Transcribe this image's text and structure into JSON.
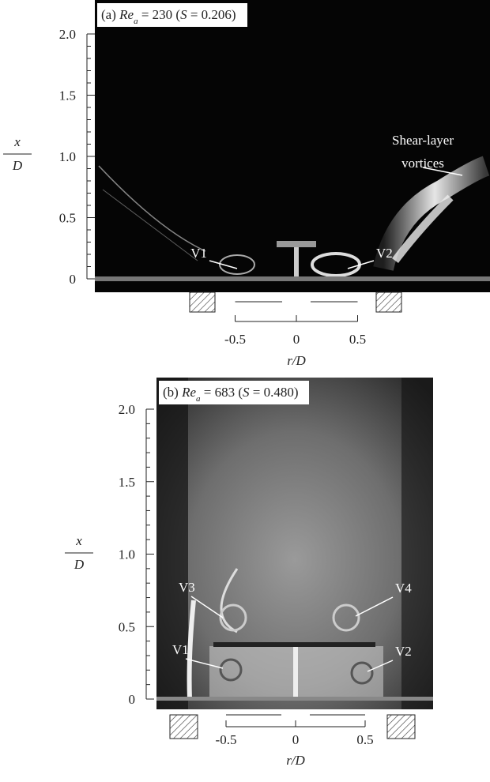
{
  "panels": [
    {
      "label_parts": [
        "(a) ",
        "Re",
        "a",
        " = 230 (",
        "S",
        " = 0.206)"
      ],
      "yticks": [
        0,
        0.5,
        {
          "value": 1,
          "label": "1.0"
        },
        1.5,
        {
          "value": 2,
          "label": "2.0"
        }
      ],
      "xticks": [
        -0.5,
        0,
        0.5
      ],
      "ylabel": {
        "numerator": "x",
        "denominator": "D"
      },
      "xlabel": "r/D",
      "annotations": [
        "V1",
        "V2",
        "Shear-layer",
        "vortices"
      ]
    },
    {
      "label_parts": [
        "(b) ",
        "Re",
        "a",
        " = 683 (",
        "S",
        " = 0.480)"
      ],
      "yticks": [
        0,
        0.5,
        {
          "value": 1,
          "label": "1.0"
        },
        1.5,
        {
          "value": 2,
          "label": "2.0"
        }
      ],
      "xticks": [
        -0.5,
        0,
        0.5
      ],
      "ylabel": {
        "numerator": "x",
        "denominator": "D"
      },
      "xlabel": "r/D",
      "annotations": [
        "V3",
        "V4",
        "V1",
        "V2"
      ]
    }
  ]
}
